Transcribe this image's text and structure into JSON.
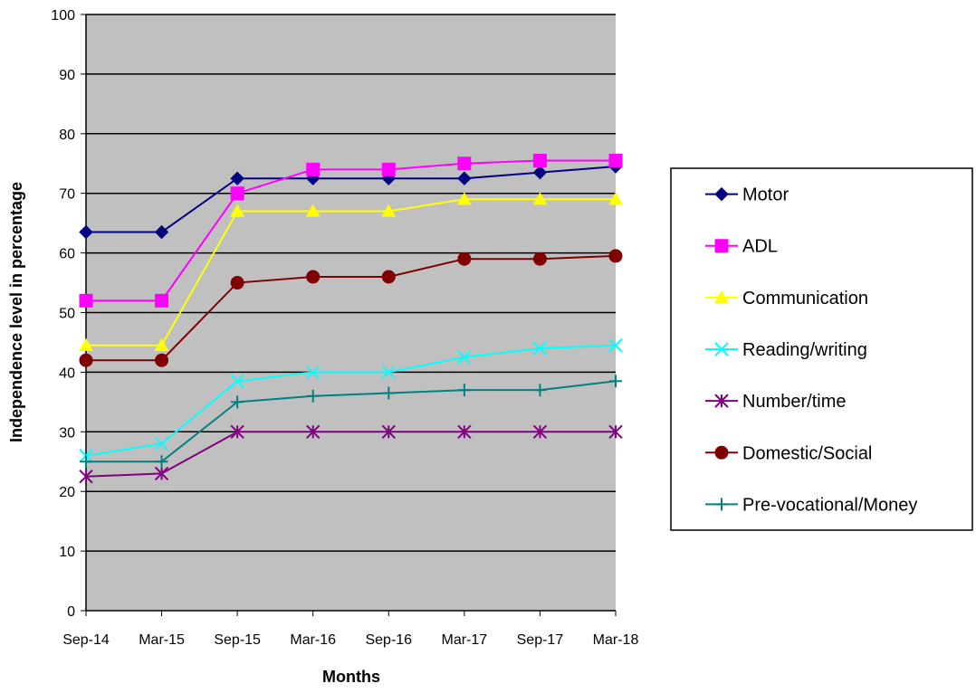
{
  "chart_data": {
    "type": "line",
    "title": "",
    "xlabel": "Months",
    "ylabel": "Independence level in percentage",
    "categories": [
      "Sep-14",
      "Mar-15",
      "Sep-15",
      "Mar-16",
      "Sep-16",
      "Mar-17",
      "Sep-17",
      "Mar-18"
    ],
    "ylim": [
      0,
      100
    ],
    "yticks": [
      "0",
      "10",
      "20",
      "30",
      "40",
      "50",
      "60",
      "70",
      "80",
      "90",
      "100"
    ],
    "grid": true,
    "plot_background": "#c0c0c0",
    "legend_position": "right",
    "series": [
      {
        "name": "Motor",
        "color": "#000080",
        "marker": "diamond",
        "values": [
          63.5,
          63.5,
          72.5,
          72.5,
          72.5,
          72.5,
          73.5,
          74.5
        ]
      },
      {
        "name": "ADL",
        "color": "#ff00ff",
        "marker": "square",
        "values": [
          52,
          52,
          70,
          74,
          74,
          75,
          75.5,
          75.5
        ]
      },
      {
        "name": "Communication",
        "color": "#ffff00",
        "marker": "triangle",
        "values": [
          44.5,
          44.5,
          67,
          67,
          67,
          69,
          69,
          69
        ]
      },
      {
        "name": "Reading/writing",
        "color": "#00ffff",
        "marker": "x",
        "values": [
          26,
          28,
          38.5,
          40,
          40,
          42.5,
          44,
          44.5
        ]
      },
      {
        "name": "Number/time",
        "color": "#800080",
        "marker": "star",
        "values": [
          22.5,
          23,
          30,
          30,
          30,
          30,
          30,
          30
        ]
      },
      {
        "name": "Domestic/Social",
        "color": "#800000",
        "marker": "circle",
        "values": [
          42,
          42,
          55,
          56,
          56,
          59,
          59,
          59.5
        ]
      },
      {
        "name": "Pre-vocational/Money",
        "color": "#008080",
        "marker": "plus",
        "values": [
          25,
          25,
          35,
          36,
          36.5,
          37,
          37,
          38.5
        ]
      }
    ]
  }
}
